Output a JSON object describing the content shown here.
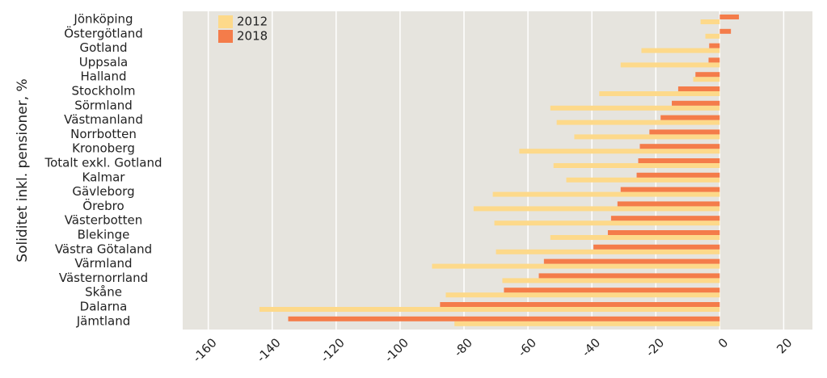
{
  "chart_data": {
    "type": "hbar",
    "ylabel": "Soliditet inkl. pensioner, %",
    "categories": [
      "Jönköping",
      "Östergötland",
      "Gotland",
      "Uppsala",
      "Halland",
      "Stockholm",
      "Sörmland",
      "Västmanland",
      "Norrbotten",
      "Kronoberg",
      "Totalt exkl. Gotland",
      "Kalmar",
      "Gävleborg",
      "Örebro",
      "Västerbotten",
      "Blekinge",
      "Västra Götaland",
      "Värmland",
      "Västernorrland",
      "Skåne",
      "Dalarna",
      "Jämtland"
    ],
    "series": [
      {
        "name": "2012",
        "color": "#fdd98a",
        "values": [
          -6,
          -4.5,
          -24.5,
          -31,
          -8.3,
          -37.7,
          -53,
          -51,
          -45.5,
          -62.7,
          -52,
          -48,
          -71,
          -77,
          -70.5,
          -53,
          -70,
          -90,
          -68,
          -85.7,
          -144,
          -83
        ]
      },
      {
        "name": "2018",
        "color": "#f47c4a",
        "values": [
          6,
          3.5,
          -3.3,
          -3.5,
          -7.6,
          -13,
          -15,
          -18.5,
          -22,
          -25,
          -25.5,
          -26,
          -31,
          -32,
          -34,
          -35,
          -39.5,
          -55,
          -56.6,
          -67.5,
          -87.5,
          -135
        ]
      }
    ],
    "xlim": [
      -168,
      29
    ],
    "xticks": [
      -160,
      -140,
      -120,
      -100,
      -80,
      -60,
      -40,
      -20,
      0,
      20
    ],
    "grid": true,
    "legend": "top-left"
  }
}
